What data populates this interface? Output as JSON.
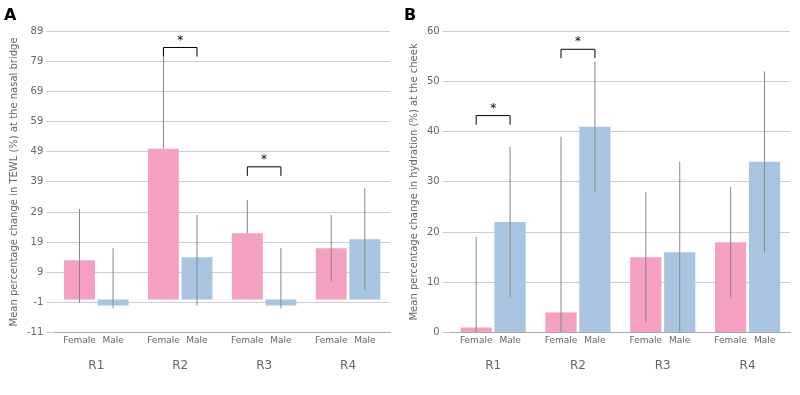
{
  "chart_data": [
    {
      "type": "bar",
      "title": "A",
      "y_label": "Mean percentage change in TEWL (%) at the nasal bridge",
      "categories": [
        "R1",
        "R2",
        "R3",
        "R4"
      ],
      "series": [
        {
          "name": "Female",
          "color": "#F4A0C0",
          "values": [
            13,
            50,
            22,
            17
          ],
          "error_upper": [
            17,
            33,
            11,
            11
          ],
          "error_lower": [
            14,
            0,
            0,
            11
          ]
        },
        {
          "name": "Male",
          "color": "#A8C4E0",
          "values": [
            -2,
            14,
            -2,
            20
          ],
          "error_upper": [
            19,
            14,
            19,
            17
          ],
          "error_lower": [
            1,
            16,
            1,
            17
          ]
        }
      ],
      "ylim": [
        -11,
        89
      ],
      "yticks": [
        -11,
        -1,
        9,
        19,
        29,
        39,
        49,
        59,
        69,
        79,
        89
      ],
      "grid": true,
      "sig_brackets": [
        {
          "category": "R2",
          "y": 83.6,
          "label": "*"
        },
        {
          "category": "R3",
          "y": 44,
          "label": "*"
        }
      ]
    },
    {
      "type": "bar",
      "title": "B",
      "y_label": "Mean percentage change in hydration (%) at the cheek",
      "categories": [
        "R1",
        "R2",
        "R3",
        "R4"
      ],
      "series": [
        {
          "name": "Female",
          "color": "#F4A0C0",
          "values": [
            1,
            4,
            15,
            18
          ],
          "error_upper": [
            18,
            35,
            13,
            11
          ],
          "error_lower": [
            1,
            4,
            13,
            11
          ]
        },
        {
          "name": "Male",
          "color": "#A8C4E0",
          "values": [
            22,
            41,
            16,
            34
          ],
          "error_upper": [
            15,
            13,
            18,
            18
          ],
          "error_lower": [
            15,
            13,
            16,
            18
          ]
        }
      ],
      "ylim": [
        0,
        60
      ],
      "yticks": [
        0,
        10,
        20,
        30,
        40,
        50,
        60
      ],
      "grid": true,
      "sig_brackets": [
        {
          "category": "R1",
          "y": 43.2,
          "label": "*"
        },
        {
          "category": "R2",
          "y": 56.4,
          "label": "*"
        }
      ]
    }
  ]
}
